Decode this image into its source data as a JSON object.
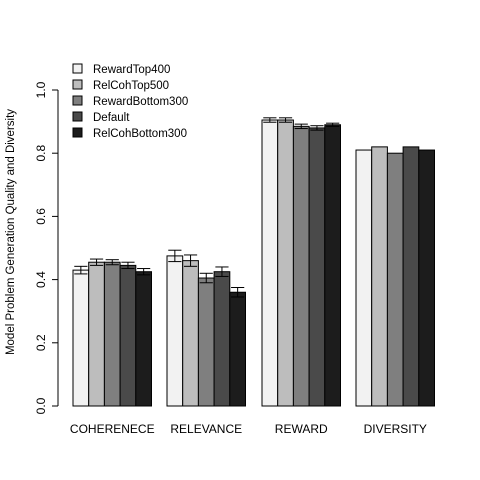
{
  "chart_data": {
    "type": "bar",
    "title": "",
    "xlabel": "",
    "ylabel": "Model Problem Generation Quality and Diversity",
    "ylim": [
      0,
      1
    ],
    "yticks": [
      0.0,
      0.2,
      0.4,
      0.6,
      0.8,
      1.0
    ],
    "ytick_labels": [
      "0.0",
      "0.2",
      "0.4",
      "0.6",
      "0.8",
      "1.0"
    ],
    "categories": [
      "COHERENECE",
      "RELEVANCE",
      "REWARD",
      "DIVERSITY"
    ],
    "legend_position": "top-left",
    "grid": false,
    "series": [
      {
        "name": "RewardTop400",
        "color": "#f2f2f2",
        "values": [
          0.43,
          0.475,
          0.905,
          0.81
        ],
        "errors": [
          0.012,
          0.018,
          0.007,
          0.0
        ]
      },
      {
        "name": "RelCohTop500",
        "color": "#bdbdbd",
        "values": [
          0.455,
          0.46,
          0.905,
          0.82
        ],
        "errors": [
          0.01,
          0.018,
          0.007,
          0.0
        ]
      },
      {
        "name": "RewardBottom300",
        "color": "#7f7f7f",
        "values": [
          0.455,
          0.405,
          0.885,
          0.8
        ],
        "errors": [
          0.008,
          0.015,
          0.007,
          0.0
        ]
      },
      {
        "name": "Default",
        "color": "#4a4a4a",
        "values": [
          0.445,
          0.425,
          0.88,
          0.82
        ],
        "errors": [
          0.01,
          0.015,
          0.007,
          0.0
        ]
      },
      {
        "name": "RelCohBottom300",
        "color": "#1c1c1c",
        "values": [
          0.425,
          0.36,
          0.89,
          0.81
        ],
        "errors": [
          0.01,
          0.015,
          0.005,
          0.0
        ]
      }
    ]
  }
}
